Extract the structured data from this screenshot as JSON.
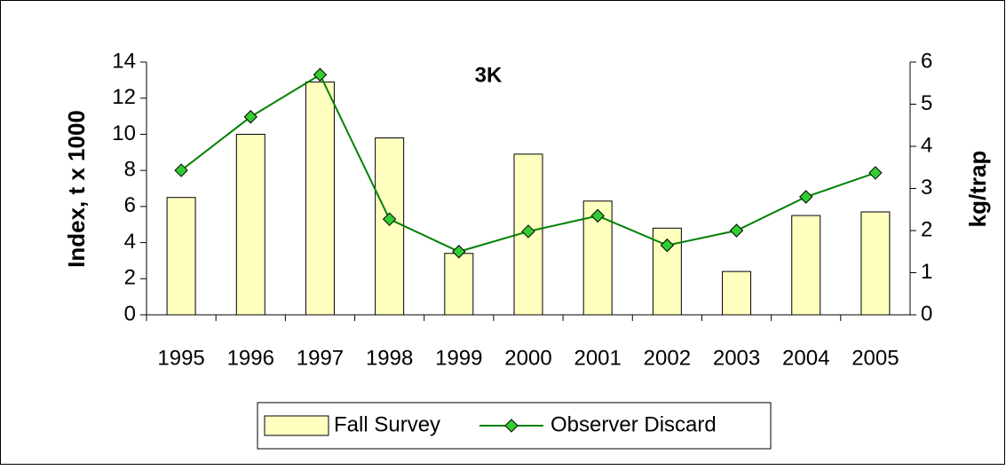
{
  "chart_data": {
    "type": "bar-line",
    "title": "3K",
    "categories": [
      "1995",
      "1996",
      "1997",
      "1998",
      "1999",
      "2000",
      "2001",
      "2002",
      "2003",
      "2004",
      "2005"
    ],
    "series": [
      {
        "name": "Fall Survey",
        "type": "bar",
        "color": "#ffffc0",
        "values": [
          6.5,
          10.0,
          12.9,
          9.8,
          3.4,
          8.9,
          6.3,
          4.8,
          2.4,
          5.5,
          5.7
        ]
      },
      {
        "name": "Observer Discard",
        "type": "line",
        "axis": "y2",
        "color": "#33cc33",
        "values": [
          3.43,
          4.7,
          5.7,
          2.27,
          1.5,
          1.98,
          2.35,
          1.65,
          2.0,
          2.8,
          3.37
        ]
      }
    ],
    "ylabel": "Index, t x 1000",
    "y2label": "kg/trap",
    "ylim": [
      0,
      14
    ],
    "yticks": [
      0,
      2,
      4,
      6,
      8,
      10,
      12,
      14
    ],
    "y2lim": [
      0,
      6
    ],
    "y2ticks": [
      0,
      1,
      2,
      3,
      4,
      5,
      6
    ],
    "grid": false,
    "legend": "bottom"
  }
}
